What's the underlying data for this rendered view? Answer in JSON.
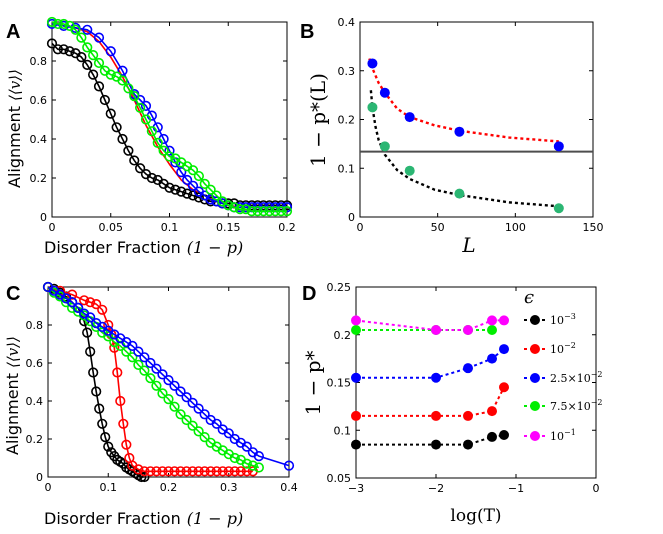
{
  "colors": {
    "red": "#ff0000",
    "blue": "#0000ff",
    "green": "#00ee00",
    "black": "#000000",
    "magenta": "#ff00ff",
    "greenFill": "#2bb673",
    "refline": "#4d4d4d"
  },
  "chart_data": [
    {
      "panel": "A",
      "type": "line",
      "xlabel": "Disorder Fraction",
      "xlabel_math": "(1 − p)",
      "ylabel": "Alignment",
      "ylabel_math": "⟨⟨v⟩⟩",
      "xlim": [
        0,
        0.2
      ],
      "ylim": [
        0,
        1
      ],
      "xticks": [
        "0",
        "0.05",
        "0.1",
        "0.15",
        "0.2"
      ],
      "yticks": [
        "0",
        "0.2",
        "0.4",
        "0.6",
        "0.8"
      ],
      "series": [
        {
          "color": "red",
          "markers": false,
          "x": [
            0,
            0.01,
            0.02,
            0.03,
            0.04,
            0.05,
            0.06,
            0.07,
            0.08,
            0.09,
            0.1,
            0.11,
            0.12,
            0.13,
            0.14,
            0.15,
            0.16,
            0.17,
            0.18,
            0.19,
            0.2
          ],
          "y": [
            1.0,
            0.98,
            0.97,
            0.95,
            0.9,
            0.82,
            0.72,
            0.6,
            0.47,
            0.36,
            0.27,
            0.19,
            0.14,
            0.11,
            0.08,
            0.06,
            0.05,
            0.05,
            0.05,
            0.05,
            0.05
          ]
        },
        {
          "color": "black",
          "markers": true,
          "x": [
            0,
            0.005,
            0.01,
            0.015,
            0.02,
            0.025,
            0.03,
            0.035,
            0.04,
            0.045,
            0.05,
            0.055,
            0.06,
            0.065,
            0.07,
            0.075,
            0.08,
            0.085,
            0.09,
            0.095,
            0.1,
            0.105,
            0.11,
            0.115,
            0.12,
            0.125,
            0.13,
            0.135,
            0.14,
            0.145,
            0.15,
            0.155,
            0.16,
            0.165,
            0.17,
            0.175,
            0.18,
            0.185,
            0.19,
            0.195,
            0.2
          ],
          "y": [
            0.89,
            0.86,
            0.86,
            0.85,
            0.84,
            0.82,
            0.78,
            0.73,
            0.67,
            0.6,
            0.53,
            0.46,
            0.4,
            0.34,
            0.29,
            0.25,
            0.22,
            0.2,
            0.19,
            0.17,
            0.15,
            0.14,
            0.13,
            0.12,
            0.11,
            0.1,
            0.09,
            0.08,
            0.08,
            0.07,
            0.07,
            0.07,
            0.06,
            0.06,
            0.06,
            0.06,
            0.06,
            0.06,
            0.06,
            0.06,
            0.06
          ]
        },
        {
          "color": "blue",
          "markers": true,
          "x": [
            0,
            0.01,
            0.02,
            0.03,
            0.04,
            0.05,
            0.06,
            0.07,
            0.075,
            0.08,
            0.085,
            0.09,
            0.095,
            0.1,
            0.105,
            0.11,
            0.115,
            0.12,
            0.125,
            0.13,
            0.135,
            0.14,
            0.145,
            0.15,
            0.155,
            0.16,
            0.165,
            0.17,
            0.175,
            0.18,
            0.185,
            0.19,
            0.195,
            0.2
          ],
          "y": [
            0.99,
            0.98,
            0.97,
            0.96,
            0.92,
            0.85,
            0.75,
            0.63,
            0.6,
            0.57,
            0.52,
            0.46,
            0.4,
            0.34,
            0.28,
            0.23,
            0.19,
            0.16,
            0.13,
            0.11,
            0.09,
            0.08,
            0.07,
            0.06,
            0.05,
            0.05,
            0.05,
            0.05,
            0.05,
            0.05,
            0.05,
            0.05,
            0.05,
            0.05
          ]
        },
        {
          "color": "green",
          "markers": true,
          "x": [
            0,
            0.005,
            0.01,
            0.015,
            0.02,
            0.025,
            0.03,
            0.035,
            0.04,
            0.045,
            0.05,
            0.055,
            0.06,
            0.065,
            0.07,
            0.075,
            0.08,
            0.085,
            0.09,
            0.095,
            0.1,
            0.105,
            0.11,
            0.115,
            0.12,
            0.125,
            0.13,
            0.135,
            0.14,
            0.145,
            0.15,
            0.155,
            0.16,
            0.165,
            0.17,
            0.175,
            0.18,
            0.185,
            0.19,
            0.195,
            0.2
          ],
          "y": [
            1.0,
            0.99,
            0.99,
            0.98,
            0.96,
            0.92,
            0.87,
            0.83,
            0.79,
            0.75,
            0.73,
            0.72,
            0.7,
            0.66,
            0.62,
            0.56,
            0.5,
            0.44,
            0.38,
            0.34,
            0.31,
            0.3,
            0.28,
            0.26,
            0.24,
            0.21,
            0.17,
            0.14,
            0.11,
            0.08,
            0.06,
            0.05,
            0.04,
            0.04,
            0.03,
            0.03,
            0.03,
            0.03,
            0.03,
            0.03,
            0.03
          ]
        }
      ]
    },
    {
      "panel": "B",
      "type": "scatter",
      "xlabel": "L",
      "ylabel": "1 − p*(L)",
      "xlim": [
        0,
        150
      ],
      "ylim": [
        0,
        0.4
      ],
      "xticks": [
        "0",
        "50",
        "100",
        "150"
      ],
      "yticks": [
        "0",
        "0.1",
        "0.2",
        "0.3",
        "0.4"
      ],
      "hline": 0.134,
      "series": [
        {
          "color": "blue",
          "x": [
            8,
            16,
            32,
            64,
            128
          ],
          "y": [
            0.315,
            0.255,
            0.205,
            0.175,
            0.145
          ],
          "fit": {
            "x": [
              6,
              8,
              12,
              16,
              24,
              32,
              48,
              64,
              96,
              128
            ],
            "y": [
              0.325,
              0.305,
              0.275,
              0.255,
              0.222,
              0.205,
              0.188,
              0.177,
              0.163,
              0.155
            ]
          }
        },
        {
          "color": "greenFill",
          "x": [
            8,
            16,
            32,
            64,
            128
          ],
          "y": [
            0.225,
            0.145,
            0.095,
            0.048,
            0.018
          ],
          "fit": {
            "x": [
              7,
              8,
              10,
              12,
              16,
              24,
              32,
              48,
              64,
              96,
              128
            ],
            "y": [
              0.26,
              0.225,
              0.185,
              0.158,
              0.128,
              0.096,
              0.078,
              0.056,
              0.045,
              0.03,
              0.022
            ]
          }
        }
      ]
    },
    {
      "panel": "C",
      "type": "line",
      "xlabel": "Disorder Fraction",
      "xlabel_math": "(1 − p)",
      "ylabel": "Alignment",
      "ylabel_math": "⟨⟨v⟩⟩",
      "xlim": [
        0,
        0.4
      ],
      "ylim": [
        0,
        1
      ],
      "xticks": [
        "0",
        "0.1",
        "0.2",
        "0.3",
        "0.4"
      ],
      "yticks": [
        "0",
        "0.2",
        "0.4",
        "0.6",
        "0.8"
      ],
      "series": [
        {
          "color": "black",
          "x": [
            0,
            0.01,
            0.02,
            0.03,
            0.04,
            0.05,
            0.06,
            0.065,
            0.07,
            0.075,
            0.08,
            0.085,
            0.09,
            0.095,
            0.1,
            0.105,
            0.11,
            0.115,
            0.12,
            0.125,
            0.13,
            0.135,
            0.14,
            0.145,
            0.15,
            0.155,
            0.16
          ],
          "y": [
            1.0,
            0.99,
            0.97,
            0.95,
            0.92,
            0.89,
            0.82,
            0.76,
            0.66,
            0.55,
            0.45,
            0.36,
            0.28,
            0.21,
            0.16,
            0.13,
            0.11,
            0.09,
            0.08,
            0.07,
            0.05,
            0.04,
            0.03,
            0.02,
            0.01,
            0.0,
            0.0
          ]
        },
        {
          "color": "red",
          "x": [
            0,
            0.02,
            0.04,
            0.06,
            0.07,
            0.08,
            0.09,
            0.1,
            0.105,
            0.11,
            0.115,
            0.12,
            0.125,
            0.13,
            0.135,
            0.14,
            0.15,
            0.16,
            0.17,
            0.18,
            0.19,
            0.2,
            0.21,
            0.22,
            0.23,
            0.24,
            0.25,
            0.26,
            0.27,
            0.28,
            0.29,
            0.3,
            0.31,
            0.32,
            0.33,
            0.34
          ],
          "y": [
            1.0,
            0.98,
            0.96,
            0.93,
            0.92,
            0.91,
            0.88,
            0.8,
            0.75,
            0.68,
            0.55,
            0.4,
            0.28,
            0.17,
            0.1,
            0.06,
            0.04,
            0.03,
            0.03,
            0.03,
            0.03,
            0.03,
            0.03,
            0.03,
            0.03,
            0.03,
            0.03,
            0.03,
            0.03,
            0.03,
            0.03,
            0.03,
            0.03,
            0.03,
            0.03,
            0.03
          ]
        },
        {
          "color": "green",
          "x": [
            0,
            0.01,
            0.02,
            0.03,
            0.04,
            0.05,
            0.06,
            0.07,
            0.08,
            0.09,
            0.1,
            0.11,
            0.12,
            0.13,
            0.14,
            0.15,
            0.16,
            0.17,
            0.18,
            0.19,
            0.2,
            0.21,
            0.22,
            0.23,
            0.24,
            0.25,
            0.26,
            0.27,
            0.28,
            0.29,
            0.3,
            0.31,
            0.32,
            0.33,
            0.34,
            0.35
          ],
          "y": [
            1.0,
            0.97,
            0.95,
            0.92,
            0.89,
            0.87,
            0.85,
            0.82,
            0.79,
            0.76,
            0.74,
            0.71,
            0.69,
            0.66,
            0.63,
            0.59,
            0.56,
            0.52,
            0.48,
            0.44,
            0.41,
            0.37,
            0.33,
            0.3,
            0.27,
            0.24,
            0.21,
            0.18,
            0.16,
            0.14,
            0.12,
            0.1,
            0.09,
            0.07,
            0.06,
            0.05
          ]
        },
        {
          "color": "blue",
          "x": [
            0,
            0.01,
            0.02,
            0.03,
            0.04,
            0.05,
            0.06,
            0.07,
            0.08,
            0.09,
            0.1,
            0.11,
            0.12,
            0.13,
            0.14,
            0.15,
            0.16,
            0.17,
            0.18,
            0.19,
            0.2,
            0.21,
            0.22,
            0.23,
            0.24,
            0.25,
            0.26,
            0.27,
            0.28,
            0.29,
            0.3,
            0.31,
            0.32,
            0.33,
            0.34,
            0.35,
            0.4
          ],
          "y": [
            1.0,
            0.98,
            0.96,
            0.94,
            0.92,
            0.89,
            0.86,
            0.84,
            0.81,
            0.79,
            0.77,
            0.75,
            0.73,
            0.71,
            0.69,
            0.66,
            0.63,
            0.6,
            0.57,
            0.54,
            0.51,
            0.48,
            0.45,
            0.42,
            0.39,
            0.36,
            0.33,
            0.3,
            0.28,
            0.25,
            0.23,
            0.2,
            0.18,
            0.16,
            0.13,
            0.11,
            0.06
          ]
        }
      ]
    },
    {
      "panel": "D",
      "type": "line",
      "xlabel": "log(T)",
      "ylabel": "1 − p*",
      "xlim": [
        -3,
        0
      ],
      "ylim": [
        0.05,
        0.25
      ],
      "xticks": [
        "−3",
        "−2",
        "−1",
        "0"
      ],
      "yticks": [
        "0.05",
        "0.1",
        "0.15",
        "0.2",
        "0.25"
      ],
      "legend_title": "ϵ",
      "series": [
        {
          "name": "10⁻³",
          "name_base": "10",
          "name_exp": "−3",
          "color": "black",
          "x": [
            -3,
            -2,
            -1.6,
            -1.3,
            -1.15
          ],
          "y": [
            0.085,
            0.085,
            0.085,
            0.093,
            0.095
          ]
        },
        {
          "name": "10⁻²",
          "name_base": "10",
          "name_exp": "−2",
          "color": "red",
          "x": [
            -3,
            -2,
            -1.6,
            -1.3,
            -1.15
          ],
          "y": [
            0.115,
            0.115,
            0.115,
            0.12,
            0.145
          ]
        },
        {
          "name": "2.5×10⁻²",
          "name_base": "2.5×10",
          "name_exp": "−2",
          "color": "blue",
          "x": [
            -3,
            -2,
            -1.6,
            -1.3,
            -1.15
          ],
          "y": [
            0.155,
            0.155,
            0.165,
            0.175,
            0.185
          ]
        },
        {
          "name": "7.5×10⁻²",
          "name_base": "7.5×10",
          "name_exp": "−2",
          "color": "green",
          "x": [
            -3,
            -2,
            -1.6,
            -1.3
          ],
          "y": [
            0.205,
            0.205,
            0.205,
            0.205
          ]
        },
        {
          "name": "10⁻¹",
          "name_base": "10",
          "name_exp": "−1",
          "color": "magenta",
          "x": [
            -3,
            -2,
            -1.6,
            -1.3,
            -1.15
          ],
          "y": [
            0.215,
            0.205,
            0.205,
            0.215,
            0.215
          ]
        }
      ]
    }
  ]
}
